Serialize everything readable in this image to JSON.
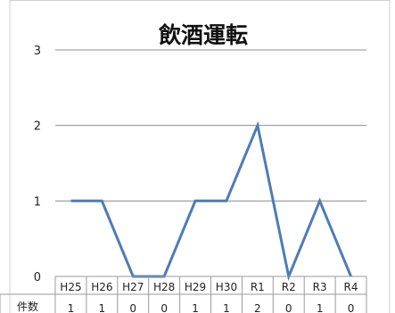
{
  "chart_data": {
    "type": "line",
    "title": "飲酒運転",
    "xlabel": "",
    "ylabel": "",
    "categories": [
      "H25",
      "H26",
      "H27",
      "H28",
      "H29",
      "H30",
      "R1",
      "R2",
      "R3",
      "R4"
    ],
    "series": [
      {
        "name": "件数",
        "values": [
          1,
          1,
          0,
          0,
          1,
          1,
          2,
          0,
          1,
          0
        ]
      }
    ],
    "ylim": [
      0,
      3
    ],
    "yticks": [
      "0",
      "1",
      "2",
      "3"
    ],
    "grid": true,
    "legend": "none",
    "data_table": true,
    "colors": {
      "series": "#4e7cb6",
      "grid": "#8c8c8c"
    }
  }
}
